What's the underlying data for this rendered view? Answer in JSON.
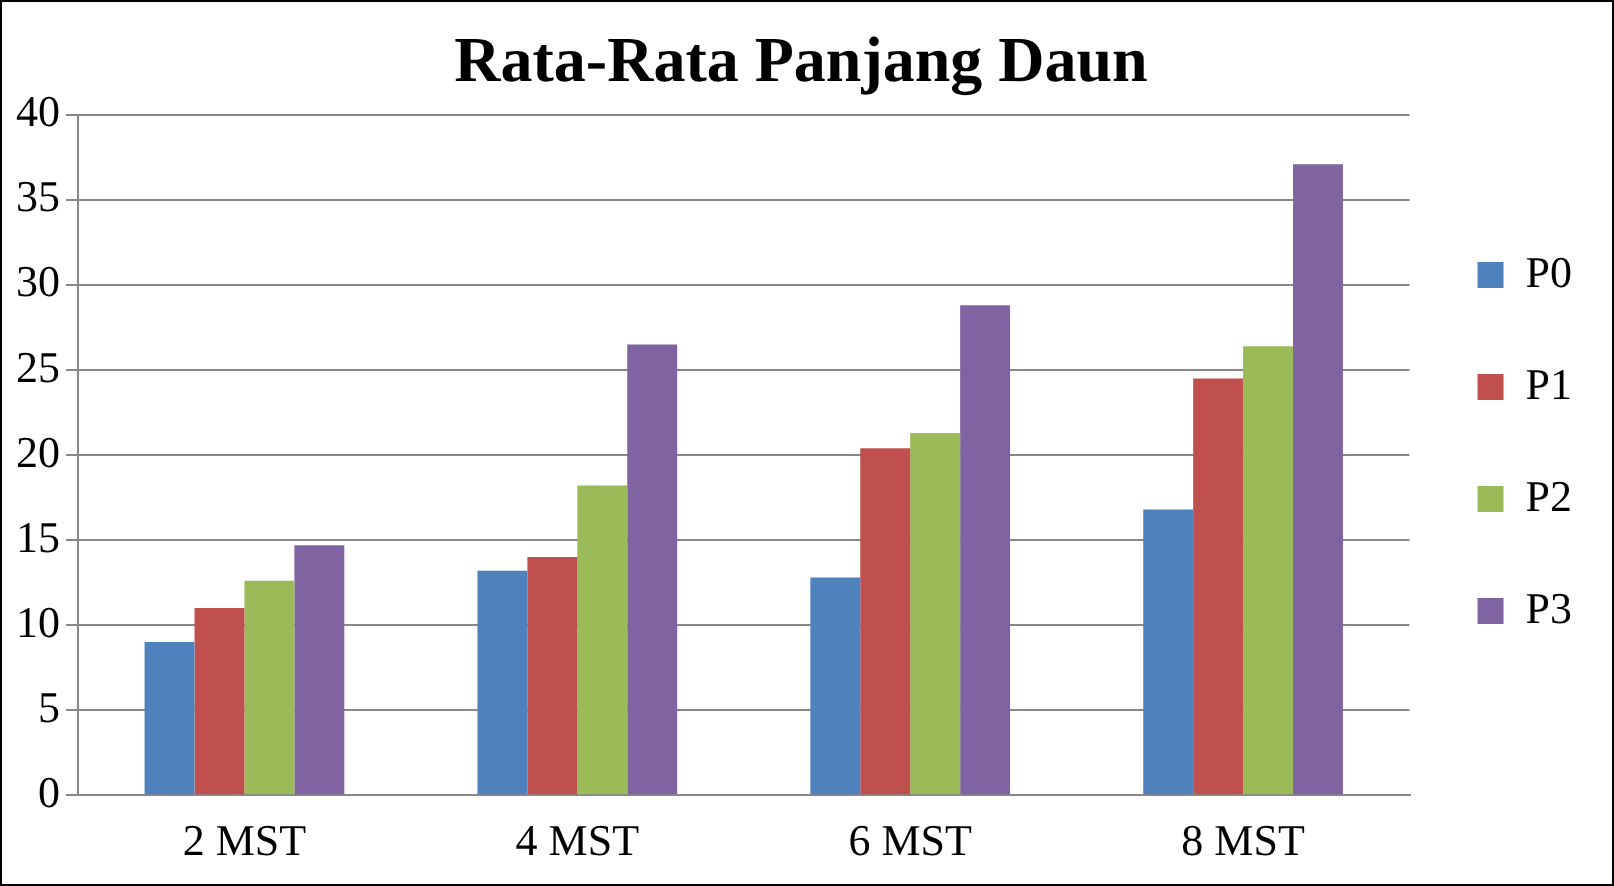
{
  "chart_data": {
    "type": "bar",
    "title": "Rata-Rata Panjang Daun",
    "categories": [
      "2 MST",
      "4 MST",
      "6 MST",
      "8 MST"
    ],
    "series": [
      {
        "name": "P0",
        "color": "#4f81bd",
        "values": [
          9.0,
          13.2,
          12.8,
          16.8
        ]
      },
      {
        "name": "P1",
        "color": "#c0504d",
        "values": [
          11.0,
          14.0,
          20.4,
          24.5
        ]
      },
      {
        "name": "P2",
        "color": "#9bbb59",
        "values": [
          12.6,
          18.2,
          21.3,
          26.4
        ]
      },
      {
        "name": "P3",
        "color": "#8064a2",
        "values": [
          14.7,
          26.5,
          28.8,
          37.1
        ]
      }
    ],
    "ylim": [
      0,
      40
    ],
    "yticks": [
      0,
      5,
      10,
      15,
      20,
      25,
      30,
      35,
      40
    ],
    "grid": "y",
    "legend": "right"
  }
}
